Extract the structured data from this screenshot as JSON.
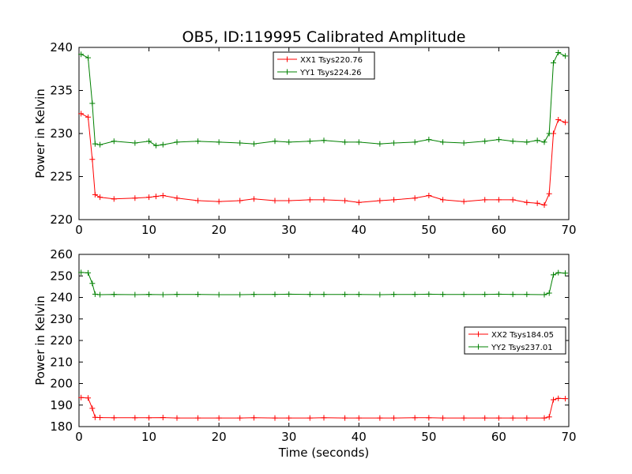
{
  "chart_data": [
    {
      "type": "line",
      "title": "OB5, ID:119995 Calibrated Amplitude",
      "xlabel": "",
      "ylabel": "Power in Kelvin",
      "xlim": [
        0,
        70
      ],
      "ylim": [
        220,
        240
      ],
      "xticks": [
        0,
        10,
        20,
        30,
        40,
        50,
        60,
        70
      ],
      "yticks": [
        220,
        225,
        230,
        235,
        240
      ],
      "grid": false,
      "legend_position": "top-center",
      "marker": "plus",
      "series": [
        {
          "name": "XX1 Tsys220.76",
          "color": "#ff0000",
          "x": [
            0.3,
            1.3,
            1.9,
            2.3,
            3,
            5,
            8,
            10,
            11,
            12,
            14,
            17,
            20,
            23,
            25,
            28,
            30,
            33,
            35,
            38,
            40,
            43,
            45,
            48,
            50,
            52,
            55,
            58,
            60,
            62,
            64,
            65.5,
            66.5,
            67.2,
            67.8,
            68.5,
            69.5
          ],
          "y": [
            232.3,
            231.9,
            227.0,
            222.9,
            222.6,
            222.4,
            222.5,
            222.6,
            222.7,
            222.8,
            222.5,
            222.2,
            222.1,
            222.2,
            222.4,
            222.2,
            222.2,
            222.3,
            222.3,
            222.2,
            222.0,
            222.2,
            222.3,
            222.5,
            222.8,
            222.3,
            222.1,
            222.3,
            222.3,
            222.3,
            222.0,
            221.9,
            221.7,
            223.0,
            230.0,
            231.6,
            231.3
          ]
        },
        {
          "name": "YY1 Tsys224.26",
          "color": "#008000",
          "x": [
            0.3,
            1.3,
            1.9,
            2.3,
            3,
            5,
            8,
            10,
            11,
            12,
            14,
            17,
            20,
            23,
            25,
            28,
            30,
            33,
            35,
            38,
            40,
            43,
            45,
            48,
            50,
            52,
            55,
            58,
            60,
            62,
            64,
            65.5,
            66.5,
            67.2,
            67.8,
            68.5,
            69.5
          ],
          "y": [
            239.2,
            238.8,
            233.5,
            228.8,
            228.7,
            229.1,
            228.9,
            229.1,
            228.6,
            228.7,
            229.0,
            229.1,
            229.0,
            228.9,
            228.8,
            229.1,
            229.0,
            229.1,
            229.2,
            229.0,
            229.0,
            228.8,
            228.9,
            229.0,
            229.3,
            229.0,
            228.9,
            229.1,
            229.3,
            229.1,
            229.0,
            229.2,
            229.0,
            230.0,
            238.2,
            239.4,
            239.0
          ]
        }
      ]
    },
    {
      "type": "line",
      "title": "",
      "xlabel": "Time (seconds)",
      "ylabel": "Power in Kelvin",
      "xlim": [
        0,
        70
      ],
      "ylim": [
        180,
        260
      ],
      "xticks": [
        0,
        10,
        20,
        30,
        40,
        50,
        60,
        70
      ],
      "yticks": [
        180,
        190,
        200,
        210,
        220,
        230,
        240,
        250,
        260
      ],
      "grid": false,
      "legend_position": "center-right",
      "marker": "plus",
      "series": [
        {
          "name": "XX2 Tsys184.05",
          "color": "#ff0000",
          "x": [
            0.3,
            1.3,
            1.9,
            2.3,
            3,
            5,
            8,
            10,
            12,
            14,
            17,
            20,
            23,
            25,
            28,
            30,
            33,
            35,
            38,
            40,
            43,
            45,
            48,
            50,
            52,
            55,
            58,
            60,
            62,
            64,
            66.5,
            67.2,
            67.8,
            68.5,
            69.5
          ],
          "y": [
            193.5,
            193.3,
            188.5,
            184.3,
            184.2,
            184.1,
            184.1,
            184.1,
            184.2,
            184.0,
            184.0,
            184.0,
            184.0,
            184.1,
            184.0,
            184.0,
            184.0,
            184.1,
            184.0,
            184.0,
            184.0,
            184.0,
            184.1,
            184.1,
            184.0,
            184.0,
            184.0,
            184.0,
            184.0,
            184.0,
            184.0,
            184.5,
            192.5,
            193.1,
            193.0
          ]
        },
        {
          "name": "YY2 Tsys237.01",
          "color": "#008000",
          "x": [
            0.3,
            1.3,
            1.9,
            2.3,
            3,
            5,
            8,
            10,
            12,
            14,
            17,
            20,
            23,
            25,
            28,
            30,
            33,
            35,
            38,
            40,
            43,
            45,
            48,
            50,
            52,
            55,
            58,
            60,
            62,
            64,
            66.5,
            67.2,
            67.8,
            68.5,
            69.5
          ],
          "y": [
            251.6,
            251.4,
            246.5,
            241.5,
            241.3,
            241.4,
            241.3,
            241.4,
            241.3,
            241.4,
            241.4,
            241.3,
            241.3,
            241.4,
            241.4,
            241.5,
            241.4,
            241.4,
            241.4,
            241.4,
            241.3,
            241.4,
            241.4,
            241.5,
            241.4,
            241.4,
            241.4,
            241.5,
            241.4,
            241.4,
            241.3,
            242.0,
            250.5,
            251.5,
            251.3
          ]
        }
      ]
    }
  ]
}
